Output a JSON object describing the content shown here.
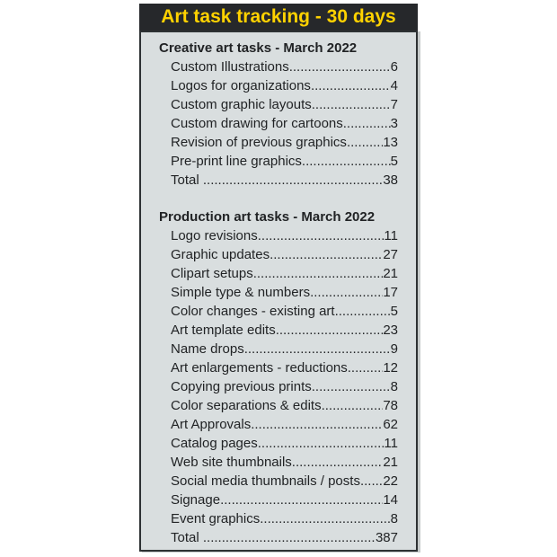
{
  "title": "Art task tracking - 30 days",
  "theme": {
    "title_bar_bg": "#26282b",
    "title_text_color": "#ffd200",
    "panel_bg": "#d9dedf",
    "panel_border": "#2d3133",
    "body_text_color": "#212325"
  },
  "leader_char": ".",
  "sections": [
    {
      "heading": "Creative art tasks - March 2022",
      "items": [
        {
          "label": "Custom Illustrations",
          "value": "6"
        },
        {
          "label": "Logos for organizations",
          "value": "4"
        },
        {
          "label": "Custom graphic layouts",
          "value": "7"
        },
        {
          "label": "Custom drawing for cartoons",
          "value": "3"
        },
        {
          "label": "Revision of previous graphics",
          "value": "13"
        },
        {
          "label": "Pre-print line graphics",
          "value": "5"
        },
        {
          "label": "Total ",
          "value": "38"
        }
      ]
    },
    {
      "heading": "Production art tasks - March 2022",
      "items": [
        {
          "label": "Logo revisions",
          "value": "11"
        },
        {
          "label": "Graphic updates",
          "value": "27"
        },
        {
          "label": "Clipart setups",
          "value": "21"
        },
        {
          "label": "Simple type & numbers",
          "value": "17"
        },
        {
          "label": "Color changes - existing art",
          "value": "5"
        },
        {
          "label": "Art template edits",
          "value": "23"
        },
        {
          "label": "Name drops",
          "value": "9"
        },
        {
          "label": "Art enlargements - reductions",
          "value": "12"
        },
        {
          "label": "Copying previous prints",
          "value": "8"
        },
        {
          "label": "Color separations & edits",
          "value": "78"
        },
        {
          "label": "Art Approvals",
          "value": "62"
        },
        {
          "label": "Catalog pages",
          "value": "11"
        },
        {
          "label": "Web site thumbnails",
          "value": "21"
        },
        {
          "label": "Social media thumbnails / posts",
          "value": "22"
        },
        {
          "label": "Signage",
          "value": "14"
        },
        {
          "label": "Event graphics",
          "value": "8"
        },
        {
          "label": "Total ",
          "value": "387"
        }
      ]
    }
  ]
}
